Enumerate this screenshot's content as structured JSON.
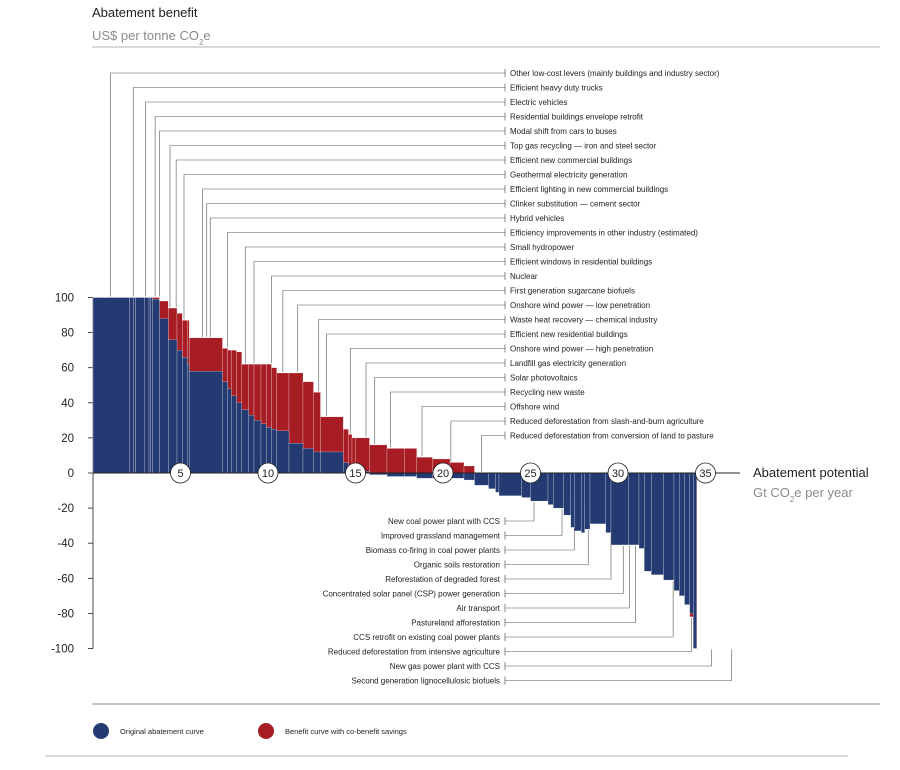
{
  "chart_data": {
    "type": "bar",
    "title": "Abatement benefit",
    "subtitle": "US$ per tonne CO2e",
    "ylabel": "Abatement benefit",
    "yunit": "US$ per tonne CO2e",
    "xlabel": "Abatement potential",
    "xunit": "Gt CO2e per year",
    "xlim": [
      0,
      37.2
    ],
    "ylim": [
      -100,
      100
    ],
    "yticks": [
      "100",
      "80",
      "60",
      "40",
      "20",
      "0",
      "-20",
      "-40",
      "-60",
      "-80",
      "-100"
    ],
    "xtick_bubbles": [
      "5",
      "10",
      "15",
      "20",
      "25",
      "30",
      "35"
    ],
    "legend_position": "bottom-left",
    "series": [
      {
        "name": "Original abatement curve",
        "color": "#243a73"
      },
      {
        "name": "Benefit curve with co-benefit savings",
        "color": "#a81c24"
      }
    ],
    "bars": [
      {
        "w": 2.1,
        "orig": 100,
        "ben": 100
      },
      {
        "w": 0.2,
        "orig": 100,
        "ben": 100
      },
      {
        "w": 0.15,
        "orig": 100,
        "ben": 100
      },
      {
        "w": 0.5,
        "orig": 100,
        "ben": 100
      },
      {
        "w": 0.25,
        "orig": 100,
        "ben": 100
      },
      {
        "w": 0.1,
        "orig": 100,
        "ben": 100
      },
      {
        "w": 0.1,
        "orig": 100,
        "ben": 100
      },
      {
        "w": 0.4,
        "orig": 99,
        "ben": 100
      },
      {
        "w": 0.5,
        "orig": 88,
        "ben": 98
      },
      {
        "w": 0.5,
        "orig": 76,
        "ben": 94
      },
      {
        "w": 0.3,
        "orig": 70,
        "ben": 91
      },
      {
        "w": 0.3,
        "orig": 66,
        "ben": 87
      },
      {
        "w": 0.1,
        "orig": 62,
        "ben": 87
      },
      {
        "w": 1.9,
        "orig": 58,
        "ben": 77
      },
      {
        "w": 0.3,
        "orig": 52,
        "ben": 71
      },
      {
        "w": 0.2,
        "orig": 48,
        "ben": 70
      },
      {
        "w": 0.3,
        "orig": 44,
        "ben": 70
      },
      {
        "w": 0.3,
        "orig": 40,
        "ben": 69
      },
      {
        "w": 0.4,
        "orig": 36,
        "ben": 62
      },
      {
        "w": 0.3,
        "orig": 33,
        "ben": 62
      },
      {
        "w": 0.4,
        "orig": 30,
        "ben": 62
      },
      {
        "w": 0.3,
        "orig": 28,
        "ben": 62
      },
      {
        "w": 0.3,
        "orig": 26,
        "ben": 62
      },
      {
        "w": 0.3,
        "orig": 25,
        "ben": 60
      },
      {
        "w": 0.7,
        "orig": 24,
        "ben": 57
      },
      {
        "w": 0.8,
        "orig": 17,
        "ben": 57
      },
      {
        "w": 0.6,
        "orig": 14,
        "ben": 52
      },
      {
        "w": 0.4,
        "orig": 12,
        "ben": 46
      },
      {
        "w": 1.3,
        "orig": 12,
        "ben": 32
      },
      {
        "w": 0.3,
        "orig": 6,
        "ben": 25
      },
      {
        "w": 0.2,
        "orig": 4,
        "ben": 22
      },
      {
        "w": 0.2,
        "orig": 2,
        "ben": 20
      },
      {
        "w": 0.8,
        "orig": 1,
        "ben": 20
      },
      {
        "w": 1.0,
        "orig": -1,
        "ben": 16
      },
      {
        "w": 1.0,
        "orig": -2,
        "ben": 14
      },
      {
        "w": 0.7,
        "orig": -2,
        "ben": 14
      },
      {
        "w": 0.9,
        "orig": -3,
        "ben": 9
      },
      {
        "w": 1.0,
        "orig": -3,
        "ben": 8
      },
      {
        "w": 0.8,
        "orig": -3,
        "ben": 6
      },
      {
        "w": 0.6,
        "orig": -4,
        "ben": 4
      },
      {
        "w": 0.8,
        "orig": -7,
        "ben": 0
      },
      {
        "w": 0.4,
        "orig": -9,
        "ben": -4
      },
      {
        "w": 0.2,
        "orig": -11,
        "ben": -5
      },
      {
        "w": 1.3,
        "orig": -13,
        "ben": -6
      },
      {
        "w": 0.5,
        "orig": -14,
        "ben": -8
      },
      {
        "w": 1.0,
        "orig": -16,
        "ben": -8
      },
      {
        "w": 0.3,
        "orig": -18,
        "ben": -9
      },
      {
        "w": 0.6,
        "orig": -20,
        "ben": -10
      },
      {
        "w": 0.4,
        "orig": -24,
        "ben": -12
      },
      {
        "w": 0.2,
        "orig": -31,
        "ben": -15
      },
      {
        "w": 0.4,
        "orig": -33,
        "ben": -16
      },
      {
        "w": 0.2,
        "orig": -34,
        "ben": -18
      },
      {
        "w": 0.3,
        "orig": -32,
        "ben": -15
      },
      {
        "w": 0.9,
        "orig": -29,
        "ben": -16
      },
      {
        "w": 0.3,
        "orig": -34,
        "ben": -16
      },
      {
        "w": 1.0,
        "orig": -41,
        "ben": -18
      },
      {
        "w": 0.6,
        "orig": -41,
        "ben": -22
      },
      {
        "w": 0.3,
        "orig": -43,
        "ben": -33
      },
      {
        "w": 0.4,
        "orig": -56,
        "ben": -35
      },
      {
        "w": 0.7,
        "orig": -58,
        "ben": -40
      },
      {
        "w": 0.6,
        "orig": -61,
        "ben": -46
      },
      {
        "w": 0.3,
        "orig": -67,
        "ben": -54
      },
      {
        "w": 0.3,
        "orig": -70,
        "ben": -58
      },
      {
        "w": 0.3,
        "orig": -75,
        "ben": -68
      },
      {
        "w": 0.2,
        "orig": -80,
        "ben": -82
      },
      {
        "w": 0.2,
        "orig": -100,
        "ben": -100
      }
    ],
    "upper_levers": [
      {
        "label": "Other low-cost levers (mainly buildings and industry sector)",
        "x": 1.0
      },
      {
        "label": "Efficient heavy duty trucks",
        "x": 2.3
      },
      {
        "label": "Electric vehicles",
        "x": 3.0
      },
      {
        "label": "Residential buildings envelope retrofit",
        "x": 3.55
      },
      {
        "label": "Modal shift from cars to buses",
        "x": 3.8
      },
      {
        "label": "Top gas recycling — iron and steel sector",
        "x": 4.4
      },
      {
        "label": "Efficient new commercial buildings",
        "x": 4.75
      },
      {
        "label": "Geothermal electricity generation",
        "x": 5.2
      },
      {
        "label": "Efficient lighting in new commercial buildings",
        "x": 6.25
      },
      {
        "label": "Clinker substitution — cement sector",
        "x": 6.5
      },
      {
        "label": "Hybrid vehicles",
        "x": 6.7
      },
      {
        "label": "Efficiency improvements in other industry (estimated)",
        "x": 7.7
      },
      {
        "label": "Small hydropower",
        "x": 8.7
      },
      {
        "label": "Efficient windows in residential buildings",
        "x": 9.2
      },
      {
        "label": "Nuclear",
        "x": 10.2
      },
      {
        "label": "First generation sugarcane biofuels",
        "x": 10.85
      },
      {
        "label": "Onshore wind power — low penetration",
        "x": 11.7
      },
      {
        "label": "Waste heat recovery — chemical industry",
        "x": 12.9
      },
      {
        "label": "Efficient new residential buildings",
        "x": 13.35
      },
      {
        "label": "Onshore wind power — high penetration",
        "x": 14.7
      },
      {
        "label": "Landfill gas electricity  generation",
        "x": 15.6
      },
      {
        "label": "Solar photovoltaics",
        "x": 16.1
      },
      {
        "label": "Recycling new waste",
        "x": 17.0
      },
      {
        "label": "Offshore wind",
        "x": 18.8
      },
      {
        "label": "Reduced deforestation from slash-and-burn agriculture",
        "x": 20.45
      },
      {
        "label": "Reduced deforestation from conversion of land to pasture",
        "x": 22.2
      }
    ],
    "lower_levers": [
      {
        "label": "New coal power plant with CCS",
        "x": 25.2
      },
      {
        "label": "Improved grassland management",
        "x": 26.8
      },
      {
        "label": "Biomass co-firing in coal power plants",
        "x": 27.5
      },
      {
        "label": "Organic soils restoration",
        "x": 28.3
      },
      {
        "label": "Reforestation of degraded forest",
        "x": 29.6
      },
      {
        "label": "Concentrated solar panel (CSP) power generation",
        "x": 30.3
      },
      {
        "label": "Air transport",
        "x": 30.65
      },
      {
        "label": "Pastureland afforestation",
        "x": 31.0
      },
      {
        "label": "CCS retrofit on existing coal power plants",
        "x": 33.15
      },
      {
        "label": "Reduced deforestation from intensive agriculture",
        "x": 34.2
      },
      {
        "label": "New gas power plant with CCS",
        "x": 35.35
      },
      {
        "label": "Second generation lignocellulosic biofuels",
        "x": 36.5
      }
    ]
  }
}
